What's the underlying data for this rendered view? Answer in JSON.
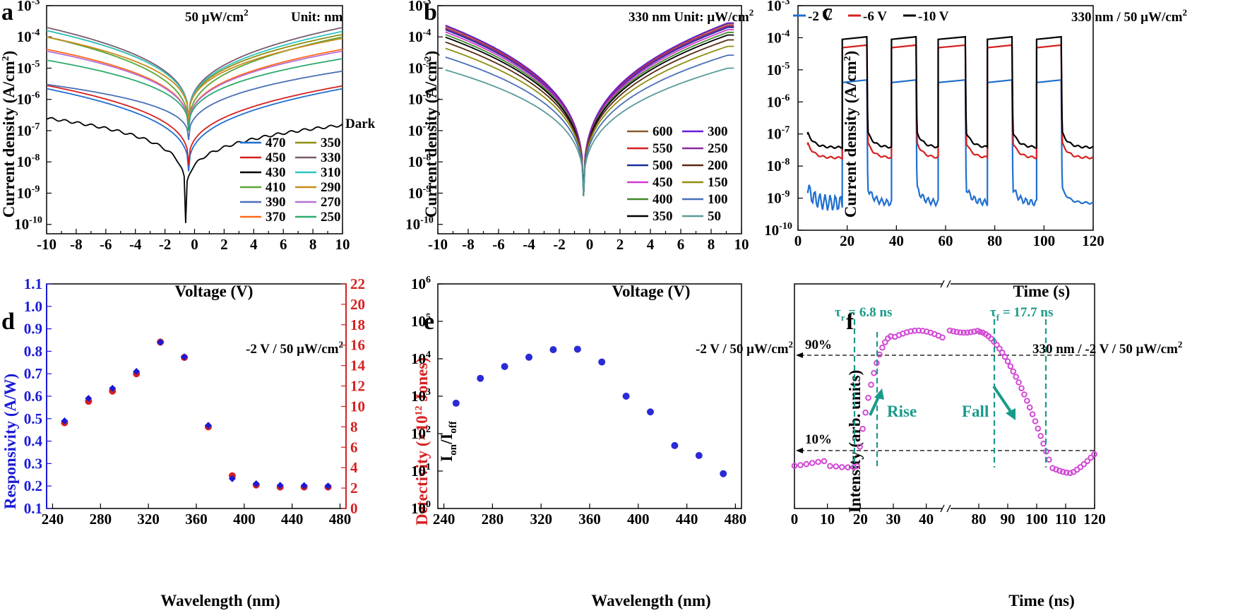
{
  "chart_data": [
    {
      "panel": "a",
      "type": "line",
      "annotation": "50 μW/cm²",
      "unit_note": "Unit: nm",
      "xlabel": "Voltage (V)",
      "ylabel": "Current density (A/cm²)",
      "xlim": [
        -10,
        10
      ],
      "ylim_log10": [
        -10.3,
        -3
      ],
      "xticks": [
        "-10",
        "-8",
        "-6",
        "-4",
        "-2",
        "0",
        "2",
        "4",
        "6",
        "8",
        "10"
      ],
      "yticks": [
        "10⁻¹⁰",
        "10⁻⁹",
        "10⁻⁸",
        "10⁻⁷",
        "10⁻⁶",
        "10⁻⁵",
        "10⁻⁴",
        "10⁻³"
      ],
      "dark_label": "Dark",
      "series": [
        {
          "name": "470",
          "color": "#1f6fd1",
          "J_neg10": 2.2e-06,
          "J_pos10": 2.2e-06,
          "v0": -0.4,
          "min": 5e-09
        },
        {
          "name": "450",
          "color": "#d62020",
          "J_neg10": 2.8e-06,
          "J_pos10": 2.7e-06,
          "v0": -0.4,
          "min": 8e-09
        },
        {
          "name": "430",
          "color": "#000000",
          "J_neg10": 2.5e-07,
          "J_pos10": 1.5e-07,
          "v0": -0.6,
          "min": 1e-10
        },
        {
          "name": "410",
          "color": "#5aa63a",
          "J_neg10": 0.0001,
          "J_pos10": 0.0001,
          "v0": -0.4,
          "min": 1e-07
        },
        {
          "name": "390",
          "color": "#4a6fb8",
          "J_neg10": 3e-06,
          "J_pos10": 8e-06,
          "v0": -0.4,
          "min": 5e-08
        },
        {
          "name": "370",
          "color": "#ff6a1a",
          "J_neg10": 4e-05,
          "J_pos10": 4e-05,
          "v0": -0.4,
          "min": 1e-07
        },
        {
          "name": "350",
          "color": "#8e8e10",
          "J_neg10": 0.00016,
          "J_pos10": 0.00012,
          "v0": -0.4,
          "min": 2e-07
        },
        {
          "name": "330",
          "color": "#7a5a6e",
          "J_neg10": 0.0002,
          "J_pos10": 0.0002,
          "v0": -0.4,
          "min": 2e-07
        },
        {
          "name": "310",
          "color": "#2ec4c4",
          "J_neg10": 0.00016,
          "J_pos10": 0.00015,
          "v0": -0.4,
          "min": 2e-07
        },
        {
          "name": "290",
          "color": "#c98a1a",
          "J_neg10": 0.0001,
          "J_pos10": 9e-05,
          "v0": -0.4,
          "min": 2e-07
        },
        {
          "name": "270",
          "color": "#b56fd6",
          "J_neg10": 3.5e-05,
          "J_pos10": 3.5e-05,
          "v0": -0.4,
          "min": 1e-07
        },
        {
          "name": "250",
          "color": "#2eaa6e",
          "J_neg10": 1.8e-05,
          "J_pos10": 2e-05,
          "v0": -0.4,
          "min": 1e-07
        }
      ]
    },
    {
      "panel": "b",
      "type": "line",
      "annotation": "330 nm",
      "unit_note": "Unit: μW/cm²",
      "xlabel": "Voltage (V)",
      "ylabel": "Current density (A/cm²)",
      "xlim": [
        -10,
        10
      ],
      "ylim_log10": [
        -10.3,
        -3
      ],
      "xticks": [
        "-10",
        "-8",
        "-6",
        "-4",
        "-2",
        "0",
        "2",
        "4",
        "6",
        "8",
        "10"
      ],
      "yticks": [
        "10⁻¹⁰",
        "10⁻⁹",
        "10⁻⁸",
        "10⁻⁷",
        "10⁻⁶",
        "10⁻⁵",
        "10⁻⁴",
        "10⁻³"
      ],
      "series": [
        {
          "name": "600",
          "color": "#8b5a2b",
          "J": 0.00026
        },
        {
          "name": "550",
          "color": "#d62020",
          "J": 0.00023
        },
        {
          "name": "500",
          "color": "#1a2fa0",
          "J": 0.0002
        },
        {
          "name": "450",
          "color": "#d23ad2",
          "J": 0.00017
        },
        {
          "name": "400",
          "color": "#3f8a2a",
          "J": 0.00014
        },
        {
          "name": "350",
          "color": "#000000",
          "J": 0.000115
        },
        {
          "name": "300",
          "color": "#6a1ad6",
          "J": 0.00028
        },
        {
          "name": "250",
          "color": "#8a2a9a",
          "J": 0.00022
        },
        {
          "name": "200",
          "color": "#5a2a10",
          "J": 8e-05
        },
        {
          "name": "150",
          "color": "#8e8e10",
          "J": 5e-05
        },
        {
          "name": "100",
          "color": "#4a6fb8",
          "J": 2.6e-05
        },
        {
          "name": "50",
          "color": "#5a9a9a",
          "J": 1e-05
        }
      ]
    },
    {
      "panel": "c",
      "type": "line",
      "annotation": "330 nm / 50 μW/cm²",
      "xlabel": "Time (s)",
      "ylabel": "Current density (A/cm²)",
      "xlim": [
        0,
        120
      ],
      "ylim_log10": [
        -10,
        -3
      ],
      "xticks": [
        "0",
        "20",
        "40",
        "60",
        "80",
        "100",
        "120"
      ],
      "yticks": [
        "10⁻¹⁰",
        "10⁻⁹",
        "10⁻⁸",
        "10⁻⁷",
        "10⁻⁶",
        "10⁻⁵",
        "10⁻⁴",
        "10⁻³"
      ],
      "on_intervals": [
        [
          18,
          28
        ],
        [
          38,
          48
        ],
        [
          57,
          68
        ],
        [
          77,
          87
        ],
        [
          97,
          107
        ]
      ],
      "series": [
        {
          "name": "-2 V",
          "color": "#1f6fd1",
          "on": 4.5e-06,
          "off": 7e-10
        },
        {
          "name": "-6 V",
          "color": "#d62020",
          "on": 5.5e-05,
          "off": 1.8e-08
        },
        {
          "name": "-10 V",
          "color": "#000000",
          "on": 0.0001,
          "off": 3.8e-08
        }
      ]
    },
    {
      "panel": "d",
      "type": "scatter",
      "annotation": "-2 V / 50 μW/cm²",
      "xlabel": "Wavelength (nm)",
      "ylabel_left": "Responsivity (A/W)",
      "ylabel_right": "Detectivity (×10¹² Jones)",
      "xlim": [
        235,
        485
      ],
      "ylim_left": [
        0.1,
        1.1
      ],
      "ylim_right": [
        0,
        22
      ],
      "xticks": [
        "240",
        "280",
        "320",
        "360",
        "400",
        "440",
        "480"
      ],
      "yticks_left": [
        "0.1",
        "0.2",
        "0.3",
        "0.4",
        "0.5",
        "0.6",
        "0.7",
        "0.8",
        "0.9",
        "1.0",
        "1.1"
      ],
      "yticks_right": [
        "0",
        "2",
        "4",
        "6",
        "8",
        "10",
        "12",
        "14",
        "16",
        "18",
        "20",
        "22"
      ],
      "x": [
        250,
        270,
        290,
        310,
        330,
        350,
        370,
        390,
        410,
        430,
        450,
        470
      ],
      "responsivity": [
        0.49,
        0.59,
        0.635,
        0.71,
        0.84,
        0.775,
        0.47,
        0.233,
        0.21,
        0.203,
        0.202,
        0.2
      ],
      "detectivity": [
        8.4,
        10.5,
        11.5,
        13.2,
        16.3,
        14.8,
        8,
        3.2,
        2.3,
        2.1,
        2.1,
        2.1
      ],
      "left_color": "#1a1ad6",
      "right_color": "#d62020"
    },
    {
      "panel": "e",
      "type": "scatter",
      "annotation": "-2 V / 50 μW/cm²",
      "xlabel": "Wavelength (nm)",
      "ylabel": "Ion/Ioff",
      "xlim": [
        235,
        485
      ],
      "ylim_log10": [
        0,
        6
      ],
      "xticks": [
        "240",
        "280",
        "320",
        "360",
        "400",
        "440",
        "480"
      ],
      "yticks": [
        "10⁰",
        "10¹",
        "10²",
        "10³",
        "10⁴",
        "10⁵",
        "10⁶"
      ],
      "x": [
        250,
        270,
        290,
        310,
        330,
        350,
        370,
        390,
        410,
        430,
        450,
        470
      ],
      "values": [
        650,
        3000,
        6200,
        11000,
        17500,
        18000,
        8200,
        1000,
        380,
        48,
        26,
        8.5
      ],
      "color": "#2a2ad6"
    },
    {
      "panel": "f",
      "type": "scatter",
      "annotation": "330 nm / -2 V / 50 μW/cm²",
      "xlabel": "Time (ns)",
      "ylabel": "Intensity (arb. units)",
      "xticks": [
        "0",
        "10",
        "20",
        "30",
        "40",
        "80",
        "90",
        "100",
        "110",
        "120"
      ],
      "rise_label": "τr = 6.8 ns",
      "fall_label": "τf = 17.7 ns",
      "level_90": "90%",
      "level_10": "10%",
      "rise_text": "Rise",
      "fall_text": "Fall",
      "color": "#d24ad6",
      "accent": "#1a9a8a"
    }
  ],
  "panels": {
    "a": {
      "letter": "a",
      "ann1": "50 μW/cm",
      "ann1_sup": "2",
      "ann2": "Unit: nm",
      "dark": "Dark",
      "xlabel": "Voltage (V)",
      "ylabel": "Current density (A/cm",
      "ylabel_sup": "2",
      "ylabel_end": ")"
    },
    "b": {
      "letter": "b",
      "ann1": "330 nm  Unit: μW/cm",
      "ann1_sup": "2",
      "xlabel": "Voltage (V)",
      "ylabel": "Current density (A/cm",
      "ylabel_sup": "2",
      "ylabel_end": ")"
    },
    "c": {
      "letter": "c",
      "ann1": "330 nm / 50 μW/cm",
      "ann1_sup": "2",
      "xlabel": "Time (s)",
      "ylabel": "Current density (A/cm",
      "ylabel_sup": "2",
      "ylabel_end": ")"
    },
    "d": {
      "letter": "d",
      "ann1": "-2 V / 50 μW/cm",
      "ann1_sup": "2",
      "xlabel": "Wavelength (nm)",
      "ylabel_left": "Responsivity (A/W)",
      "ylabel_right": "Detectivity (×10",
      "ylabel_right_sup": "12",
      "ylabel_right_end": " Jones)"
    },
    "e": {
      "letter": "e",
      "ann1": "-2 V / 50 μW/cm",
      "ann1_sup": "2",
      "xlabel": "Wavelength (nm)",
      "ylabel": "I",
      "ylabel_sub1": "on",
      "ylabel_mid": "/I",
      "ylabel_sub2": "off"
    },
    "f": {
      "letter": "f",
      "ann1": "330 nm / -2 V / 50 μW/cm",
      "ann1_sup": "2",
      "xlabel": "Time (ns)",
      "ylabel": "Intensity (arb. units)",
      "tau_r": "τ",
      "tau_r_sub": "r",
      "tau_r_val": " = 6.8 ns",
      "tau_f": "τ",
      "tau_f_sub": "f",
      "tau_f_val": " = 17.7 ns",
      "p90": "90%",
      "p10": "10%",
      "rise": "Rise",
      "fall": "Fall"
    }
  }
}
